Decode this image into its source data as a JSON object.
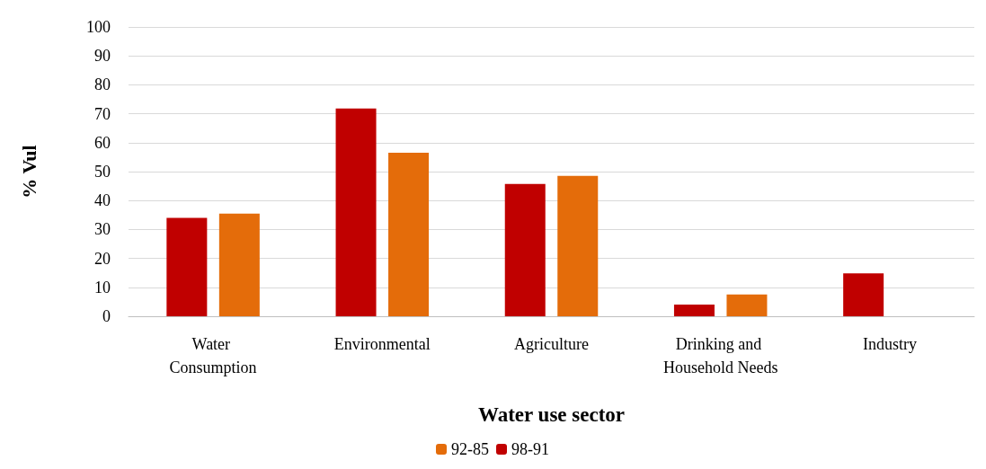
{
  "chart_data": {
    "type": "bar",
    "xlabel": "Water use sector",
    "ylabel": "% Vul",
    "categories": [
      "Water Consumption",
      "Environmental",
      "Agriculture",
      "Drinking and Household Needs",
      "Industry"
    ],
    "series": [
      {
        "name": "98-91",
        "color": "#c00000",
        "values": [
          34,
          71.8,
          45.7,
          4,
          14.8
        ]
      },
      {
        "name": "92-85",
        "color": "#e46c0a",
        "values": [
          35.5,
          56.5,
          48.5,
          7.5,
          null
        ]
      }
    ],
    "ylim": [
      0,
      100
    ],
    "yticks": [
      0,
      10,
      20,
      30,
      40,
      50,
      60,
      70,
      80,
      90,
      100
    ],
    "grid": "y",
    "legend": "bottom"
  }
}
